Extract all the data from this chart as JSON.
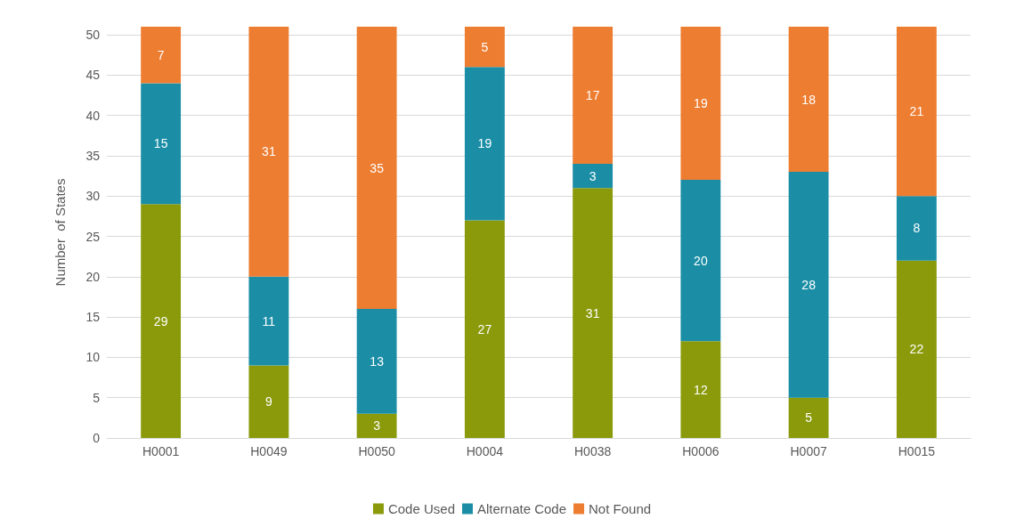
{
  "chart_data": {
    "type": "bar",
    "stacked": true,
    "ylabel": "Number  of States",
    "categories": [
      "H0001",
      "H0049",
      "H0050",
      "H0004",
      "H0038",
      "H0006",
      "H0007",
      "H0015"
    ],
    "series": [
      {
        "name": "Code Used",
        "color": "#8a9a0b",
        "values": [
          29,
          9,
          3,
          27,
          31,
          12,
          5,
          22
        ]
      },
      {
        "name": "Alternate Code",
        "color": "#1b8ea6",
        "values": [
          15,
          11,
          13,
          19,
          3,
          20,
          28,
          8
        ]
      },
      {
        "name": "Not Found",
        "color": "#ed7d31",
        "values": [
          7,
          31,
          35,
          5,
          17,
          19,
          18,
          21
        ]
      }
    ],
    "ylim": [
      0,
      51
    ],
    "yticks": [
      0,
      5,
      10,
      15,
      20,
      25,
      30,
      35,
      40,
      45,
      50
    ],
    "grid": "y",
    "legend": "bottom",
    "data_labels": true
  }
}
